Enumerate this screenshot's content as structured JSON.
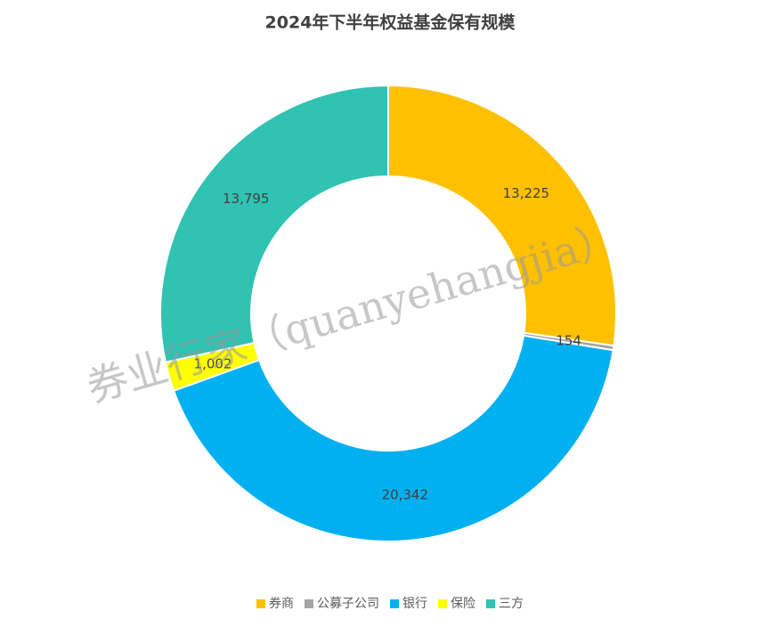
{
  "chart_data": {
    "type": "pie",
    "title": "2024年下半年权益基金保有规模",
    "categories": [
      "券商",
      "公募子公司",
      "银行",
      "保险",
      "三方"
    ],
    "values": [
      13225,
      154,
      20342,
      1002,
      13795
    ],
    "value_labels": [
      "13,225",
      "154",
      "20,342",
      "1,002",
      "13,795"
    ],
    "colors": [
      "#FFC000",
      "#A5A5A5",
      "#00B0F0",
      "#FFFF00",
      "#30C2B2"
    ],
    "donut": true,
    "legend": "bottom"
  },
  "watermark": "券业行家（quanyehangjia）"
}
